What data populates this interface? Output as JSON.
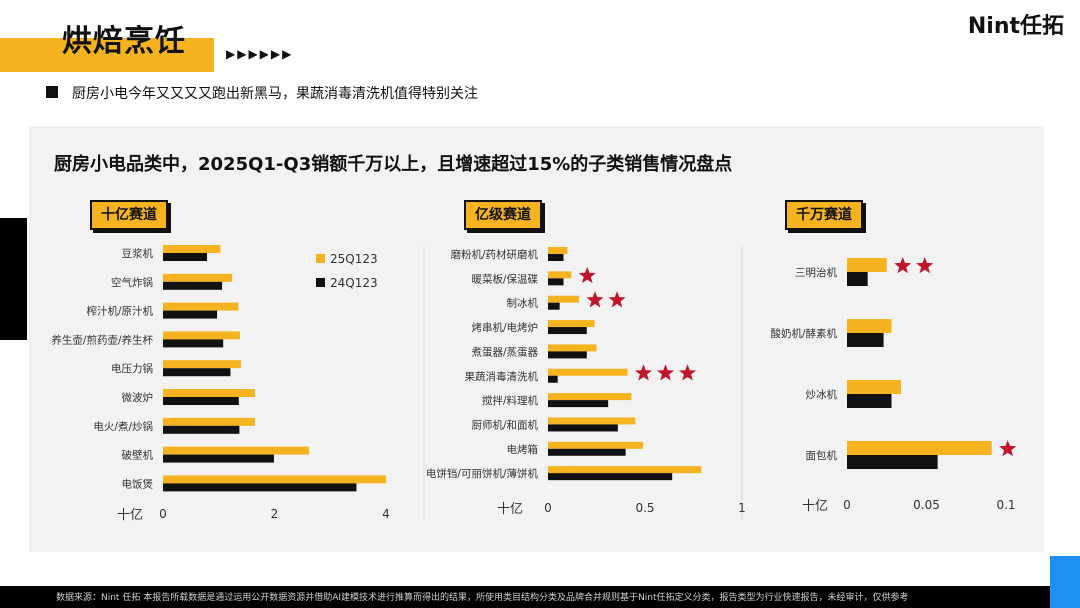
{
  "header": {
    "title": "烘焙烹饪",
    "arrows": "▶▶▶▶▶▶",
    "logo": "Nint任拓",
    "subtitle": "厨房小电今年又又又又跑出新黑马，果蔬消毒清洗机值得特别关注"
  },
  "panel": {
    "title": "厨房小电品类中，2025Q1-Q3销额千万以上，且增速超过15%的子类销售情况盘点"
  },
  "footer": {
    "text": "数据来源：Nint 任拓    本报告所载数据是通过运用公开数据资源并借助AI建模技术进行推算而得出的结果，所使用类目结构分类及品牌合并规则基于Nint任拓定义分类，报告类型为行业快速报告，未经审计，仅供参考"
  },
  "colors": {
    "s2025": "#f5b41f",
    "s2024": "#111111",
    "star": "#c0152b",
    "panel": "#f2f2f2"
  },
  "chart_data": [
    {
      "type": "bar",
      "orientation": "horizontal",
      "tier": "十亿赛道",
      "xlabel": "十亿",
      "xlim": [
        0,
        4
      ],
      "xticks": [
        0,
        2,
        4
      ],
      "categories": [
        "豆浆机",
        "空气炸锅",
        "榨汁机/原汁机",
        "养生壶/煎药壶/养生杯",
        "电压力锅",
        "微波炉",
        "电火/煮/炒锅",
        "破壁机",
        "电饭煲"
      ],
      "series": [
        {
          "name": "25Q123",
          "color": "#f5b41f",
          "values": [
            1.03,
            1.24,
            1.35,
            1.38,
            1.4,
            1.65,
            1.65,
            2.62,
            4.0
          ]
        },
        {
          "name": "24Q123",
          "color": "#111111",
          "values": [
            0.79,
            1.06,
            0.97,
            1.08,
            1.21,
            1.36,
            1.37,
            1.99,
            3.47
          ]
        }
      ],
      "stars": [
        0,
        0,
        0,
        0,
        0,
        0,
        0,
        0,
        0
      ],
      "legend": "top-right"
    },
    {
      "type": "bar",
      "orientation": "horizontal",
      "tier": "亿级赛道",
      "xlabel": "十亿",
      "xlim": [
        0,
        1
      ],
      "xticks": [
        0,
        0.5,
        1
      ],
      "categories": [
        "磨粉机/药材研磨机",
        "暖菜板/保温碟",
        "制冰机",
        "烤串机/电烤炉",
        "煮蛋器/蒸蛋器",
        "果蔬消毒清洗机",
        "搅拌/料理机",
        "厨师机/和面机",
        "电烤箱",
        "电饼铛/可丽饼机/薄饼机"
      ],
      "series": [
        {
          "name": "25Q123",
          "color": "#f5b41f",
          "values": [
            0.1,
            0.12,
            0.16,
            0.24,
            0.25,
            0.41,
            0.43,
            0.45,
            0.49,
            0.79
          ]
        },
        {
          "name": "24Q123",
          "color": "#111111",
          "values": [
            0.08,
            0.08,
            0.06,
            0.2,
            0.2,
            0.05,
            0.31,
            0.36,
            0.4,
            0.64
          ]
        }
      ],
      "stars": [
        0,
        1,
        2,
        0,
        0,
        3,
        0,
        0,
        0,
        0
      ]
    },
    {
      "type": "bar",
      "orientation": "horizontal",
      "tier": "千万赛道",
      "xlabel": "十亿",
      "xlim": [
        0,
        0.1
      ],
      "xticks": [
        0,
        0.05,
        0.1
      ],
      "categories": [
        "三明治机",
        "酸奶机/酵素机",
        "炒冰机",
        "面包机"
      ],
      "series": [
        {
          "name": "25Q123",
          "color": "#f5b41f",
          "values": [
            0.025,
            0.028,
            0.034,
            0.091
          ]
        },
        {
          "name": "24Q123",
          "color": "#111111",
          "values": [
            0.013,
            0.023,
            0.028,
            0.057
          ]
        }
      ],
      "stars": [
        2,
        0,
        0,
        1
      ]
    }
  ]
}
